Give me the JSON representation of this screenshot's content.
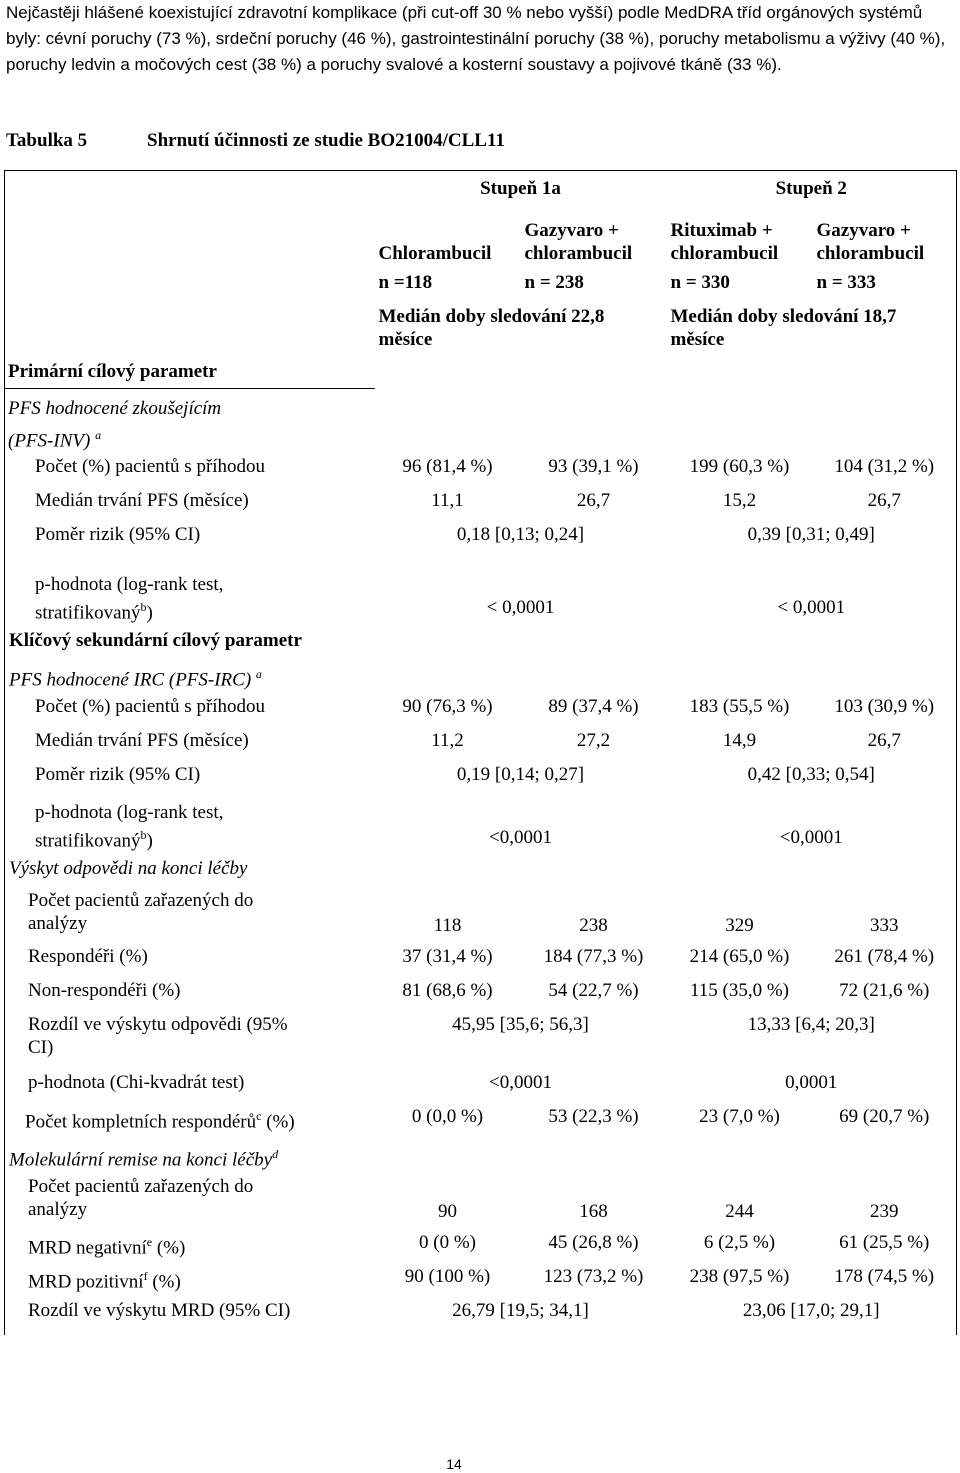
{
  "intro": "Nejčastěji hlášené koexistující zdravotní komplikace (při cut-off 30 % nebo vyšší) podle MedDRA tříd orgánových systémů byly: cévní poruchy (73 %), srdeční poruchy (46 %), gastrointestinální poruchy (38 %), poruchy metabolismu a výživy (40 %), poruchy ledvin a močových cest (38 %) a poruchy svalové a kosterní soustavy a pojivové tkáně (33 %).",
  "caption": {
    "label": "Tabulka 5",
    "title": "Shrnutí účinnosti ze studie BO21004/CLL11"
  },
  "header": {
    "stage1": "Stupeň 1a",
    "stage2": "Stupeň 2",
    "arms": [
      {
        "line1": "",
        "line2": "Chlorambucil",
        "n": "n =118"
      },
      {
        "line1": "Gazyvaro +",
        "line2": "chlorambucil",
        "n": "n = 238"
      },
      {
        "line1": "Rituximab +",
        "line2": "chlorambucil",
        "n": "n = 330"
      },
      {
        "line1": "Gazyvaro +",
        "line2": "chlorambucil",
        "n": "n = 333"
      }
    ],
    "followup1_a": "Medián doby sledování 22,8",
    "followup1_b": "měsíce",
    "followup2_a": "Medián doby sledování 18,7",
    "followup2_b": "měsíce"
  },
  "sections": {
    "primary": "Primární cílový parametr",
    "pfs_inv_a": "PFS hodnocené zkoušejícím",
    "pfs_inv_b": "(PFS-INV)",
    "pfs_inv_sup": "a",
    "key_secondary": "Klíčový sekundární cílový parametr",
    "pfs_irc": "PFS hodnocené IRC (PFS-IRC)",
    "pfs_irc_sup": "a",
    "response": "Výskyt odpovědi na konci léčby",
    "molecular": "Molekulární remise na konci léčby",
    "molecular_sup": "d"
  },
  "inv": {
    "events_label": "Počet (%) pacientů s příhodou",
    "events": [
      "96 (81,4 %)",
      "93 (39,1 %)",
      "199 (60,3 %)",
      "104 (31,2 %)"
    ],
    "median_label": "Medián trvání PFS (měsíce)",
    "median": [
      "11,1",
      "26,7",
      "15,2",
      "26,7"
    ],
    "hr_label": "Poměr rizik (95% CI)",
    "hr": [
      "0,18 [0,13; 0,24]",
      "0,39 [0,31; 0,49]"
    ],
    "p_label_a": "p-hodnota (log-rank test,",
    "p_label_b": "stratifikovaný",
    "p_label_sup": "b",
    "p_label_c": ")",
    "p": [
      "< 0,0001",
      "< 0,0001"
    ]
  },
  "irc": {
    "events_label": "Počet (%) pacientů s příhodou",
    "events": [
      "90 (76,3 %)",
      "89 (37,4 %)",
      "183 (55,5 %)",
      "103 (30,9 %)"
    ],
    "median_label": "Medián trvání PFS (měsíce)",
    "median": [
      "11,2",
      "27,2",
      "14,9",
      "26,7"
    ],
    "hr_label": "Poměr rizik (95% CI)",
    "hr": [
      "0,19 [0,14; 0,27]",
      "0,42 [0,33; 0,54]"
    ],
    "p_label_a": "p-hodnota (log-rank test,",
    "p_label_b": "stratifikovaný",
    "p_label_sup": "b",
    "p_label_c": ")",
    "p": [
      "<0,0001",
      "<0,0001"
    ]
  },
  "resp": {
    "n_label_a": "Počet pacientů zařazených do",
    "n_label_b": "analýzy",
    "n": [
      "118",
      "238",
      "329",
      "333"
    ],
    "responders_label": "Respondéři (%)",
    "responders": [
      "37 (31,4 %)",
      "184 (77,3 %)",
      "214 (65,0 %)",
      "261 (78,4 %)"
    ],
    "nonresponders_label": "Non-respondéři (%)",
    "nonresponders": [
      "81 (68,6 %)",
      "54 (22,7 %)",
      "115 (35,0 %)",
      "72 (21,6 %)"
    ],
    "diff_label_a": "Rozdíl ve výskytu odpovědi (95%",
    "diff_label_b": "CI)",
    "diff": [
      "45,95 [35,6; 56,3]",
      "13,33 [6,4; 20,3]"
    ],
    "p_label": "p-hodnota (Chi-kvadrát test)",
    "p": [
      "<0,0001",
      "0,0001"
    ],
    "complete_label": "Počet kompletních respondérů",
    "complete_sup": "c",
    "complete_label_end": " (%)",
    "complete": [
      "0 (0,0 %)",
      "53 (22,3 %)",
      "23 (7,0 %)",
      "69 (20,7 %)"
    ]
  },
  "mol": {
    "n_label_a": "Počet pacientů zařazených do",
    "n_label_b": "analýzy",
    "n": [
      "90",
      "168",
      "244",
      "239"
    ],
    "neg_label": "MRD negativní",
    "neg_sup": "e",
    "neg_label_end": " (%)",
    "neg": [
      "0 (0 %)",
      "45 (26,8 %)",
      "6 (2,5 %)",
      "61 (25,5 %)"
    ],
    "pos_label": "MRD pozitivní",
    "pos_sup": "f",
    "pos_label_end": " (%)",
    "pos": [
      "90 (100 %)",
      "123 (73,2 %)",
      "238 (97,5 %)",
      "178 (74,5 %)"
    ],
    "diff_label": "Rozdíl ve výskytu MRD (95% CI)",
    "diff": [
      "26,79 [19,5; 34,1]",
      "23,06 [17,0; 29,1]"
    ]
  },
  "page_number": "14"
}
